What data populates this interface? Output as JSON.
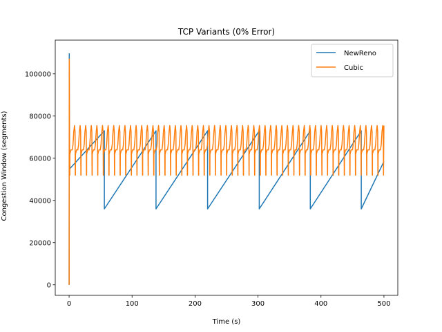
{
  "chart_data": {
    "type": "line",
    "title": "TCP Variants (0% Error)",
    "xlabel": "Time (s)",
    "ylabel": "Congestion Window (segments)",
    "xlim": [
      -22,
      522
    ],
    "ylim": [
      -5000,
      116000
    ],
    "xticks": [
      0,
      100,
      200,
      300,
      400,
      500
    ],
    "yticks": [
      0,
      20000,
      40000,
      60000,
      80000,
      100000
    ],
    "grid": false,
    "legend": "top-right",
    "series": [
      {
        "name": "NewReno",
        "color": "#1f77b4",
        "pattern": {
          "startup": [
            [
              0,
              0
            ],
            [
              0.3,
              109500
            ],
            [
              0.6,
              60000
            ],
            [
              1,
              55000
            ]
          ],
          "first_ramp": [
            [
              1,
              55000
            ],
            [
              56,
              73000
            ]
          ],
          "drops_at": [
            56,
            138,
            220,
            302,
            383,
            464
          ],
          "drop_low": 36000,
          "peak": 73000,
          "end": [
            500,
            58500
          ]
        }
      },
      {
        "name": "Cubic",
        "color": "#ff7f0e",
        "pattern": {
          "startup": [
            [
              0,
              0
            ],
            [
              0.3,
              107000
            ],
            [
              0.6,
              60000
            ],
            [
              1,
              55000
            ]
          ],
          "period": 8.9,
          "low": 52000,
          "plateau": 64000,
          "peak": 75500,
          "end": [
            500,
            75500
          ]
        }
      }
    ]
  }
}
